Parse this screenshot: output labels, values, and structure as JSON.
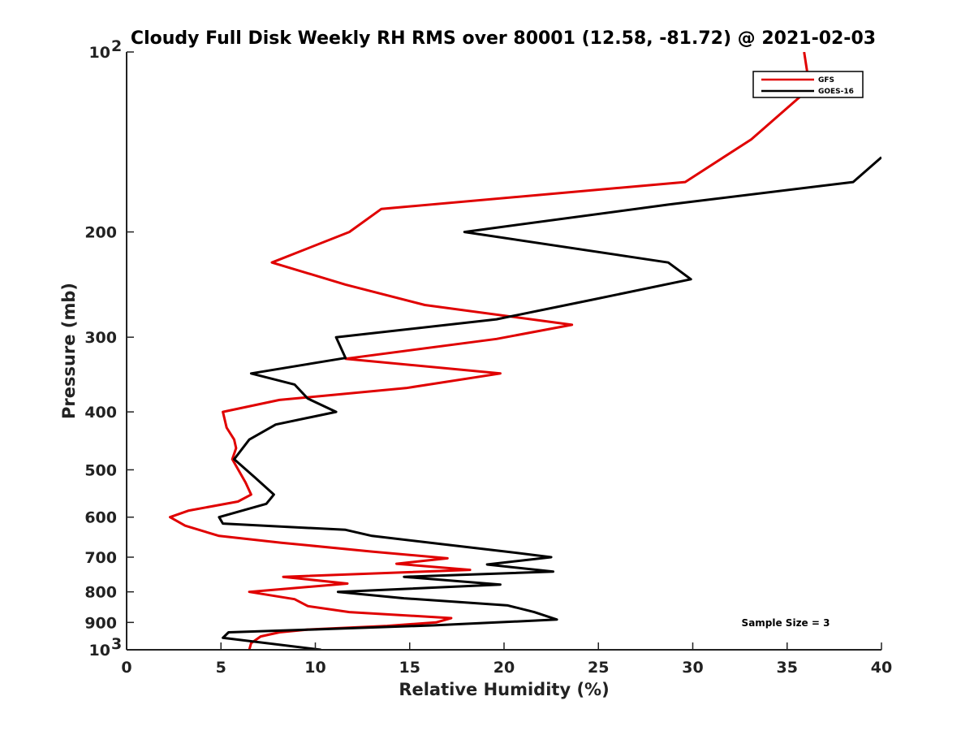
{
  "chart_data": {
    "type": "line",
    "title": "Cloudy Full Disk Weekly RH RMS over 80001 (12.58, -81.72) @ 2021-02-03",
    "xlabel": "Relative Humidity (%)",
    "ylabel": "Pressure (mb)",
    "xlim": [
      0,
      40
    ],
    "ylim": [
      100,
      1000
    ],
    "y_scale": "log",
    "y_reversed": true,
    "x_ticks": [
      "0",
      "5",
      "10",
      "15",
      "20",
      "25",
      "30",
      "35",
      "40"
    ],
    "y_ticks": [
      {
        "value": 100,
        "label": "10",
        "sup": "2"
      },
      {
        "value": 200,
        "label": "200",
        "sup": ""
      },
      {
        "value": 300,
        "label": "300",
        "sup": ""
      },
      {
        "value": 400,
        "label": "400",
        "sup": ""
      },
      {
        "value": 500,
        "label": "500",
        "sup": ""
      },
      {
        "value": 600,
        "label": "600",
        "sup": ""
      },
      {
        "value": 700,
        "label": "700",
        "sup": ""
      },
      {
        "value": 800,
        "label": "800",
        "sup": ""
      },
      {
        "value": 900,
        "label": "900",
        "sup": ""
      },
      {
        "value": 1000,
        "label": "10",
        "sup": "3"
      }
    ],
    "legend_position": "top-right",
    "annotation": "Sample Size = 3",
    "series": [
      {
        "name": "GFS",
        "color": "#e00000",
        "points": [
          [
            35.9,
            100
          ],
          [
            36.2,
            115
          ],
          [
            33.1,
            140
          ],
          [
            29.6,
            165
          ],
          [
            13.5,
            183
          ],
          [
            11.8,
            200
          ],
          [
            7.7,
            225
          ],
          [
            11.6,
            245
          ],
          [
            15.8,
            265
          ],
          [
            23.6,
            286
          ],
          [
            19.6,
            302
          ],
          [
            11.6,
            326
          ],
          [
            19.8,
            345
          ],
          [
            14.8,
            365
          ],
          [
            8.1,
            382
          ],
          [
            5.1,
            400
          ],
          [
            5.3,
            425
          ],
          [
            5.7,
            445
          ],
          [
            5.8,
            460
          ],
          [
            5.6,
            480
          ],
          [
            6.3,
            525
          ],
          [
            6.6,
            550
          ],
          [
            5.9,
            565
          ],
          [
            3.3,
            585
          ],
          [
            2.3,
            600
          ],
          [
            3.1,
            620
          ],
          [
            4.9,
            645
          ],
          [
            8.2,
            662
          ],
          [
            13.0,
            685
          ],
          [
            17.0,
            703
          ],
          [
            14.3,
            718
          ],
          [
            18.2,
            735
          ],
          [
            8.3,
            755
          ],
          [
            11.7,
            775
          ],
          [
            6.5,
            800
          ],
          [
            8.9,
            823
          ],
          [
            9.6,
            845
          ],
          [
            11.8,
            865
          ],
          [
            17.2,
            885
          ],
          [
            16.4,
            900
          ],
          [
            13.8,
            912
          ],
          [
            9.6,
            925
          ],
          [
            8.1,
            935
          ],
          [
            7.1,
            950
          ],
          [
            6.6,
            975
          ],
          [
            6.5,
            1000
          ]
        ]
      },
      {
        "name": "GOES-16",
        "color": "#000000",
        "points": [
          [
            40.0,
            150
          ],
          [
            38.5,
            165
          ],
          [
            28.7,
            180
          ],
          [
            17.9,
            200
          ],
          [
            28.7,
            225
          ],
          [
            29.9,
            240
          ],
          [
            24.6,
            260
          ],
          [
            19.6,
            280
          ],
          [
            11.1,
            300
          ],
          [
            11.6,
            325
          ],
          [
            6.6,
            345
          ],
          [
            8.9,
            360
          ],
          [
            9.6,
            380
          ],
          [
            11.1,
            400
          ],
          [
            7.9,
            420
          ],
          [
            6.5,
            445
          ],
          [
            5.7,
            480
          ],
          [
            6.8,
            515
          ],
          [
            7.8,
            550
          ],
          [
            7.4,
            570
          ],
          [
            4.9,
            600
          ],
          [
            5.1,
            615
          ],
          [
            11.6,
            630
          ],
          [
            13.0,
            645
          ],
          [
            16.6,
            665
          ],
          [
            20.1,
            685
          ],
          [
            22.5,
            700
          ],
          [
            19.1,
            720
          ],
          [
            22.6,
            740
          ],
          [
            14.7,
            755
          ],
          [
            19.8,
            778
          ],
          [
            11.2,
            800
          ],
          [
            14.7,
            820
          ],
          [
            20.2,
            843
          ],
          [
            21.6,
            865
          ],
          [
            22.8,
            890
          ],
          [
            16.3,
            910
          ],
          [
            9.8,
            925
          ],
          [
            5.4,
            935
          ],
          [
            5.1,
            955
          ],
          [
            10.3,
            1000
          ]
        ]
      }
    ]
  }
}
